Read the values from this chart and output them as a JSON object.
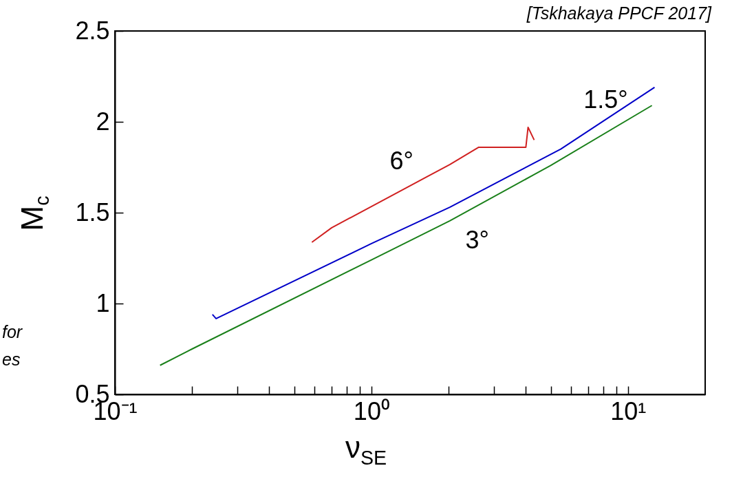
{
  "chart_data": {
    "type": "line",
    "xlabel": "ν$_{SE}$",
    "ylabel": "M$_{c}$",
    "log": "x",
    "grid": false,
    "xlim": [
      0.1,
      20
    ],
    "ylim": [
      0.5,
      2.5
    ],
    "xticks": [
      {
        "value": 0.1,
        "label": "10⁻¹"
      },
      {
        "value": 0.2,
        "label": null
      },
      {
        "value": 0.3,
        "label": null
      },
      {
        "value": 0.4,
        "label": null
      },
      {
        "value": 0.5,
        "label": null
      },
      {
        "value": 0.6,
        "label": null
      },
      {
        "value": 0.7,
        "label": null
      },
      {
        "value": 0.8,
        "label": null
      },
      {
        "value": 0.9,
        "label": null
      },
      {
        "value": 1,
        "label": "10⁰"
      },
      {
        "value": 2,
        "label": null
      },
      {
        "value": 3,
        "label": null
      },
      {
        "value": 4,
        "label": null
      },
      {
        "value": 5,
        "label": null
      },
      {
        "value": 6,
        "label": null
      },
      {
        "value": 7,
        "label": null
      },
      {
        "value": 8,
        "label": null
      },
      {
        "value": 9,
        "label": null
      },
      {
        "value": 10,
        "label": "10¹"
      }
    ],
    "yticks": [
      0.5,
      1,
      1.5,
      2,
      2.5
    ],
    "series": [
      {
        "name": "1.5°",
        "color": "#0000c8",
        "x": [
          0.24,
          0.248,
          1,
          2.02,
          5.47,
          12.7
        ],
        "values": [
          0.94,
          0.917,
          1.33,
          1.53,
          1.85,
          2.19
        ]
      },
      {
        "name": "3°",
        "color": "#1a801a",
        "x": [
          0.15,
          0.2,
          1,
          2.02,
          5,
          12.4
        ],
        "values": [
          0.66,
          0.75,
          1.24,
          1.455,
          1.76,
          2.09
        ]
      },
      {
        "name": "6°",
        "color": "#d02020",
        "x": [
          0.586,
          0.7,
          2.02,
          2.62,
          4,
          4.08,
          4.31
        ],
        "values": [
          1.337,
          1.417,
          1.765,
          1.86,
          1.86,
          1.97,
          1.9
        ]
      }
    ],
    "annotations": [
      "[Tskhakaya PPCF 2017]",
      "for",
      "es"
    ]
  }
}
